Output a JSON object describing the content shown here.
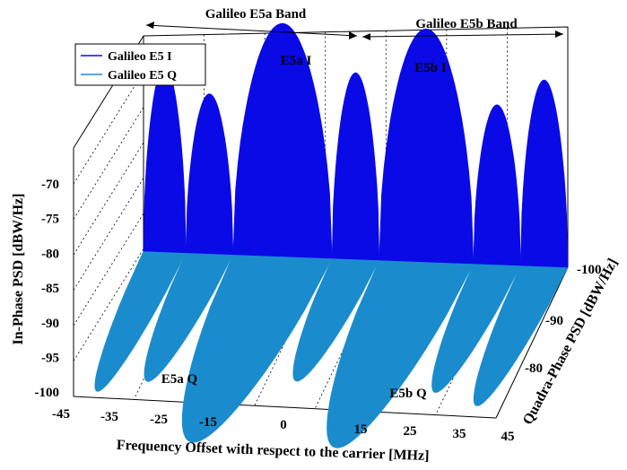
{
  "chart_data": {
    "type": "area",
    "title": "",
    "xlabel": "Frequency Offset with respect to the carrier [MHz]",
    "ylabel": "In-Phase PSD [dBW/Hz]",
    "zlabel": "Quadra-Phase PSD [dBW/Hz]",
    "x_ticks": [
      "-45",
      "-35",
      "-25",
      "-15",
      "0",
      "15",
      "25",
      "35",
      "45"
    ],
    "y_ticks": [
      "-70",
      "-75",
      "-80",
      "-85",
      "-90",
      "-95",
      "-100"
    ],
    "z_ticks": [
      "-100",
      "-90",
      "-80"
    ],
    "xlim": [
      -45,
      45
    ],
    "ylim": [
      -100,
      -65
    ],
    "zlim": [
      -100,
      -75
    ],
    "grid": true,
    "legend_position": "top-left",
    "bands": [
      {
        "label": "Galileo E5a Band",
        "x_from": -45,
        "x_to": 15
      },
      {
        "label": "Galileo E5b Band",
        "x_from": 15,
        "x_to": 45
      }
    ],
    "annotations": [
      "E5a I",
      "E5b I",
      "E5a Q",
      "E5b Q"
    ],
    "series": [
      {
        "name": "Galileo E5 I",
        "color": "#0a0ae6",
        "lobes": [
          {
            "x_from": -45,
            "x_to": -36,
            "peak_db": -72
          },
          {
            "x_from": -36,
            "x_to": -26,
            "peak_db": -76
          },
          {
            "x_from": -26,
            "x_to": -5,
            "peak_db": -65
          },
          {
            "x_from": -5,
            "x_to": 5,
            "peak_db": -72
          },
          {
            "x_from": 5,
            "x_to": 25,
            "peak_db": -65
          },
          {
            "x_from": 25,
            "x_to": 35,
            "peak_db": -76
          },
          {
            "x_from": 35,
            "x_to": 45,
            "peak_db": -72
          }
        ]
      },
      {
        "name": "Galileo E5 Q",
        "color": "#1a8ccd",
        "lobes": [
          {
            "x_from": -45,
            "x_to": -36,
            "peak_db": -76
          },
          {
            "x_from": -36,
            "x_to": -26,
            "peak_db": -78
          },
          {
            "x_from": -26,
            "x_to": -5,
            "peak_db": -68
          },
          {
            "x_from": -5,
            "x_to": 5,
            "peak_db": -79
          },
          {
            "x_from": 5,
            "x_to": 25,
            "peak_db": -68
          },
          {
            "x_from": 25,
            "x_to": 35,
            "peak_db": -78
          },
          {
            "x_from": 35,
            "x_to": 45,
            "peak_db": -76
          }
        ]
      }
    ]
  }
}
